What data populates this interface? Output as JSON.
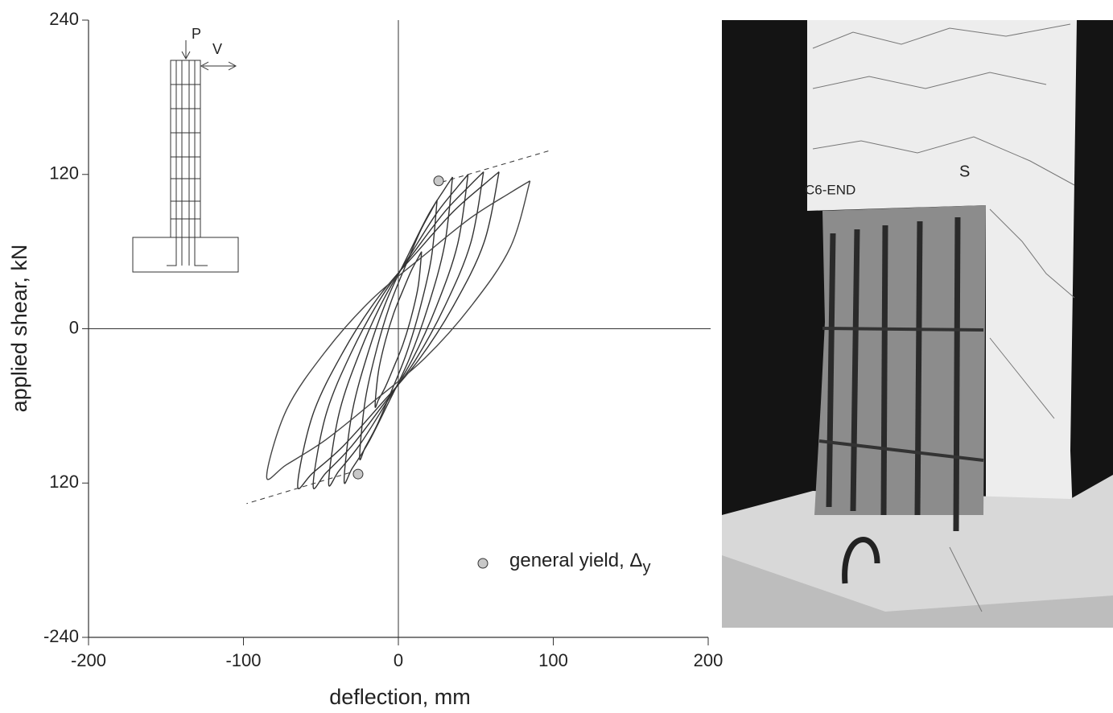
{
  "chart_data": {
    "type": "line",
    "xlabel": "deflection, mm",
    "ylabel": "applied shear, kN",
    "xlim": [
      -200,
      200
    ],
    "ylim": [
      -240,
      240
    ],
    "xticks": [
      -200,
      -100,
      0,
      100,
      200
    ],
    "yticks": [
      240,
      120,
      0,
      {
        "value": -120,
        "label": "120"
      },
      -240
    ],
    "zero_lines": true,
    "series": [
      {
        "color": "#333333",
        "x": [
          15,
          12.8,
          8.3,
          3,
          -3,
          -8.3,
          -12.8,
          -15,
          -12.8,
          -8.3,
          -3,
          3,
          8.3,
          12.8,
          15
        ],
        "values": [
          60,
          33,
          9,
          -12,
          -30,
          -45,
          -55.2,
          -60,
          -33,
          -9,
          12,
          30,
          45,
          55.2,
          60
        ]
      },
      {
        "color": "#333333",
        "x": [
          25,
          21.3,
          13.8,
          5,
          -5,
          -13.8,
          -21.3,
          -25,
          -21.3,
          -13.8,
          -5,
          5,
          13.8,
          21.3,
          25
        ],
        "values": [
          100,
          55,
          15,
          -20,
          -50,
          -75,
          -92,
          -100,
          -55,
          -15,
          20,
          50,
          75,
          92,
          100
        ]
      },
      {
        "color": "#333333",
        "x": [
          35,
          29.8,
          19.3,
          7,
          -7,
          -19.3,
          -29.8,
          -35,
          -29.8,
          -19.3,
          -7,
          7,
          19.3,
          29.8,
          35
        ],
        "values": [
          118,
          64.9,
          17.7,
          -23.6,
          -59,
          -88.5,
          -108.6,
          -118,
          -64.9,
          -17.7,
          23.6,
          59,
          88.5,
          108.6,
          118
        ]
      },
      {
        "color": "#333333",
        "x": [
          45,
          38.3,
          24.8,
          9,
          -9,
          -24.8,
          -38.3,
          -45,
          -38.3,
          -24.8,
          -9,
          9,
          24.8,
          38.3,
          45
        ],
        "values": [
          120,
          66,
          18,
          -24,
          -60,
          -90,
          -110.4,
          -120,
          -66,
          -18,
          24,
          60,
          90,
          110.4,
          120
        ]
      },
      {
        "color": "#333333",
        "x": [
          55,
          46.8,
          30.3,
          11,
          -11,
          -30.3,
          -46.8,
          -55,
          -46.8,
          -30.3,
          -11,
          11,
          30.3,
          46.8,
          55
        ],
        "values": [
          122,
          67.1,
          18.3,
          -24.4,
          -61,
          -91.5,
          -112.2,
          -122,
          -67.1,
          -18.3,
          24.4,
          61,
          91.5,
          112.2,
          122
        ]
      },
      {
        "color": "#333333",
        "x": [
          65,
          55.3,
          35.8,
          13,
          -13,
          -35.8,
          -55.3,
          -65,
          -55.3,
          -35.8,
          -13,
          13,
          35.8,
          55.3,
          65
        ],
        "values": [
          122,
          67.1,
          18.3,
          -24.4,
          -61,
          -91.5,
          -112.2,
          -122,
          -67.1,
          -18.3,
          24.4,
          61,
          91.5,
          112.2,
          122
        ]
      },
      {
        "color": "#444444",
        "x": [
          85,
          72.3,
          46.8,
          17,
          -17,
          -46.8,
          -72.3,
          -85,
          -72.3,
          -46.8,
          -17,
          17,
          46.8,
          72.3,
          85
        ],
        "values": [
          115,
          63.3,
          17.3,
          -23,
          -57.5,
          -86.3,
          -105.8,
          -115,
          -63.3,
          -17.3,
          23,
          57.5,
          86.3,
          105.8,
          115
        ]
      },
      {
        "name": "general yield, Δ",
        "name_subscript": "y",
        "marker": "circle",
        "color": "#c8c8c8",
        "x": [
          26,
          -26
        ],
        "values": [
          115,
          -113
        ]
      }
    ],
    "annotations": [
      {
        "style": "dashed",
        "x": [
          28,
          99
        ],
        "y": [
          114,
          139
        ]
      },
      {
        "style": "dashed",
        "x": [
          -26,
          -98
        ],
        "y": [
          -110,
          -136
        ]
      }
    ],
    "inset": {
      "load_labels": [
        "P",
        "V"
      ]
    },
    "photo": {
      "labels": [
        "C6-END",
        "S"
      ]
    }
  }
}
